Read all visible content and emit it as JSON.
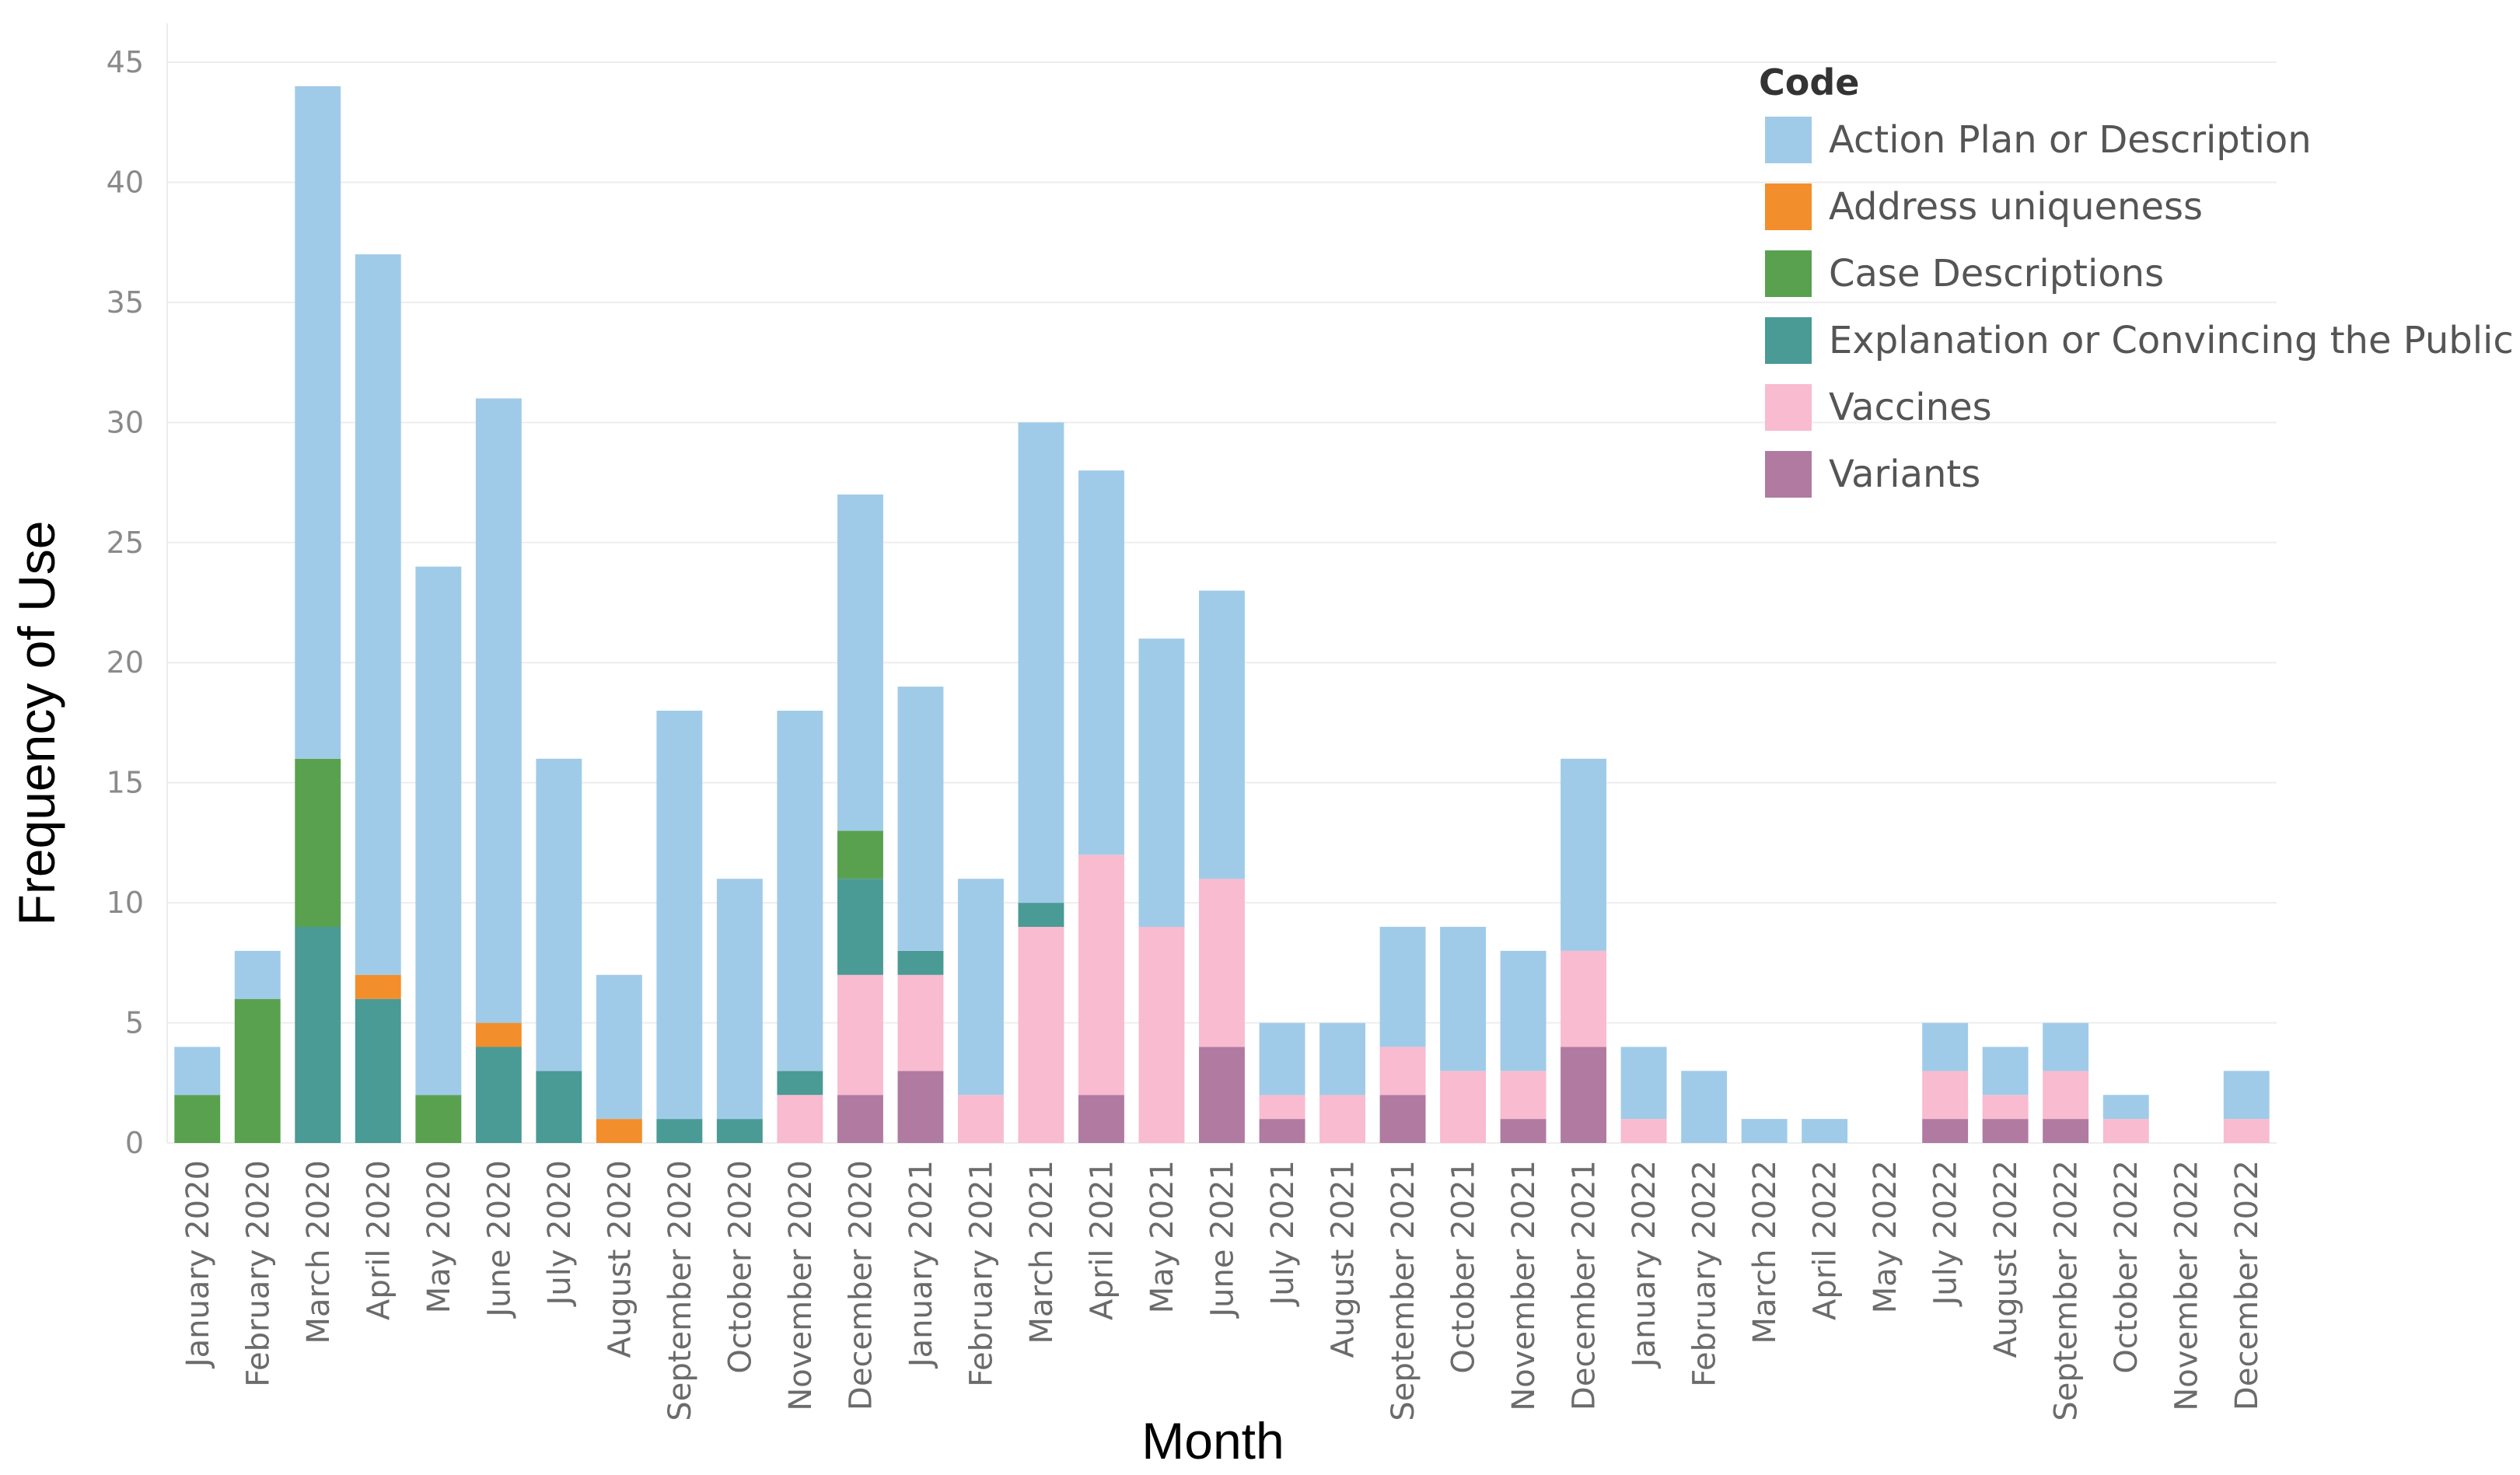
{
  "chart_data": {
    "type": "bar",
    "stacked": true,
    "xlabel": "Month",
    "ylabel": "Frequency of Use",
    "ylim": [
      0,
      45
    ],
    "yticks": [
      0,
      5,
      10,
      15,
      20,
      25,
      30,
      35,
      40,
      45
    ],
    "grid": true,
    "legend": {
      "title": "Code",
      "placement": "top-right"
    },
    "categories": [
      "January 2020",
      "February 2020",
      "March 2020",
      "April 2020",
      "May 2020",
      "June 2020",
      "July 2020",
      "August 2020",
      "September 2020",
      "October 2020",
      "November 2020",
      "December 2020",
      "January 2021",
      "February 2021",
      "March 2021",
      "April 2021",
      "May 2021",
      "June 2021",
      "July 2021",
      "August 2021",
      "September 2021",
      "October 2021",
      "November 2021",
      "December 2021",
      "January 2022",
      "February 2022",
      "March 2022",
      "April 2022",
      "May 2022",
      "July 2022",
      "August 2022",
      "September 2022",
      "October 2022",
      "November 2022",
      "December 2022"
    ],
    "series": [
      {
        "name": "Variants",
        "color": "#b07aa1",
        "values": [
          0,
          0,
          0,
          0,
          0,
          0,
          0,
          0,
          0,
          0,
          0,
          2,
          3,
          0,
          0,
          2,
          0,
          4,
          1,
          0,
          2,
          0,
          1,
          4,
          0,
          0,
          0,
          0,
          0,
          1,
          1,
          1,
          0,
          0,
          0
        ]
      },
      {
        "name": "Vaccines",
        "color": "#f8bbd0",
        "values": [
          0,
          0,
          0,
          0,
          0,
          0,
          0,
          0,
          0,
          0,
          2,
          5,
          4,
          2,
          9,
          10,
          9,
          7,
          1,
          2,
          2,
          3,
          2,
          4,
          1,
          0,
          0,
          0,
          0,
          2,
          1,
          2,
          1,
          0,
          1
        ]
      },
      {
        "name": "Explanation or Convincing the Public",
        "color": "#4a9a95",
        "values": [
          0,
          0,
          9,
          6,
          0,
          4,
          3,
          0,
          1,
          1,
          1,
          4,
          1,
          0,
          1,
          0,
          0,
          0,
          0,
          0,
          0,
          0,
          0,
          0,
          0,
          0,
          0,
          0,
          0,
          0,
          0,
          0,
          0,
          0,
          0
        ]
      },
      {
        "name": "Case Descriptions",
        "color": "#59a14f",
        "values": [
          2,
          6,
          7,
          0,
          2,
          0,
          0,
          0,
          0,
          0,
          0,
          2,
          0,
          0,
          0,
          0,
          0,
          0,
          0,
          0,
          0,
          0,
          0,
          0,
          0,
          0,
          0,
          0,
          0,
          0,
          0,
          0,
          0,
          0,
          0
        ]
      },
      {
        "name": "Address uniqueness",
        "color": "#f28e2b",
        "values": [
          0,
          0,
          0,
          1,
          0,
          1,
          0,
          1,
          0,
          0,
          0,
          0,
          0,
          0,
          0,
          0,
          0,
          0,
          0,
          0,
          0,
          0,
          0,
          0,
          0,
          0,
          0,
          0,
          0,
          0,
          0,
          0,
          0,
          0,
          0
        ]
      },
      {
        "name": "Action Plan or Description",
        "color": "#a0cbe8",
        "values": [
          2,
          2,
          28,
          30,
          22,
          26,
          13,
          6,
          17,
          10,
          15,
          14,
          11,
          9,
          20,
          16,
          12,
          12,
          3,
          3,
          5,
          6,
          5,
          8,
          3,
          3,
          1,
          1,
          0,
          2,
          2,
          2,
          1,
          0,
          2
        ]
      }
    ]
  }
}
